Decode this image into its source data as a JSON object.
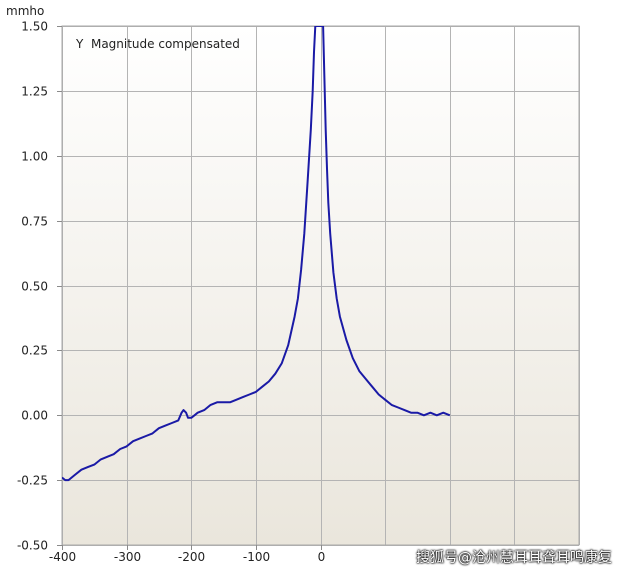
{
  "chart_data": {
    "type": "line",
    "unit_label": "mmho",
    "legend_text": "Y  Magnitude compensated",
    "legend_placement": "top-left",
    "xlim": [
      -400,
      400
    ],
    "ylim": [
      -0.5,
      1.5
    ],
    "x_ticks": [
      -400,
      -300,
      -200,
      -100,
      0
    ],
    "x_tick_labels": [
      "-400",
      "-300",
      "-200",
      "-100",
      "0"
    ],
    "y_ticks": [
      1.5,
      1.25,
      1.0,
      0.75,
      0.5,
      0.25,
      0.0,
      -0.25,
      -0.5
    ],
    "y_tick_labels": [
      "1.50",
      "1.25",
      "1.00",
      "0.75",
      "0.50",
      "0.25",
      "0.00",
      "-0.25",
      "-0.50"
    ],
    "grid": true,
    "series": [
      {
        "name": "Y  Magnitude compensated",
        "color": "#1a1aa6",
        "x": [
          -400,
          -395,
          -390,
          -380,
          -370,
          -360,
          -350,
          -340,
          -330,
          -320,
          -310,
          -300,
          -290,
          -280,
          -270,
          -260,
          -250,
          -240,
          -230,
          -220,
          -215,
          -212,
          -208,
          -205,
          -200,
          -195,
          -190,
          -180,
          -170,
          -160,
          -150,
          -140,
          -130,
          -120,
          -110,
          -100,
          -90,
          -80,
          -70,
          -60,
          -50,
          -40,
          -35,
          -30,
          -25,
          -20,
          -15,
          -12,
          -10,
          -8,
          -6,
          -4,
          -3,
          0,
          4,
          6,
          8,
          10,
          12,
          15,
          20,
          25,
          30,
          40,
          50,
          60,
          70,
          80,
          90,
          100,
          110,
          120,
          130,
          140,
          150,
          160,
          170,
          180,
          190,
          200
        ],
        "y": [
          -0.24,
          -0.25,
          -0.25,
          -0.23,
          -0.21,
          -0.2,
          -0.19,
          -0.17,
          -0.16,
          -0.15,
          -0.13,
          -0.12,
          -0.1,
          -0.09,
          -0.08,
          -0.07,
          -0.05,
          -0.04,
          -0.03,
          -0.02,
          0.01,
          0.02,
          0.01,
          -0.01,
          -0.01,
          0.0,
          0.01,
          0.02,
          0.04,
          0.05,
          0.05,
          0.05,
          0.06,
          0.07,
          0.08,
          0.09,
          0.11,
          0.13,
          0.16,
          0.2,
          0.27,
          0.38,
          0.45,
          0.56,
          0.7,
          0.9,
          1.1,
          1.25,
          1.4,
          1.5,
          1.5,
          1.5,
          1.5,
          1.5,
          1.5,
          1.3,
          1.1,
          0.95,
          0.82,
          0.7,
          0.55,
          0.45,
          0.38,
          0.29,
          0.22,
          0.17,
          0.14,
          0.11,
          0.08,
          0.06,
          0.04,
          0.03,
          0.02,
          0.01,
          0.01,
          0.0,
          0.01,
          0.0,
          0.01,
          0.0
        ]
      }
    ]
  },
  "watermark": "搜狐号@沧州慧耳耳聋耳鸣康复"
}
